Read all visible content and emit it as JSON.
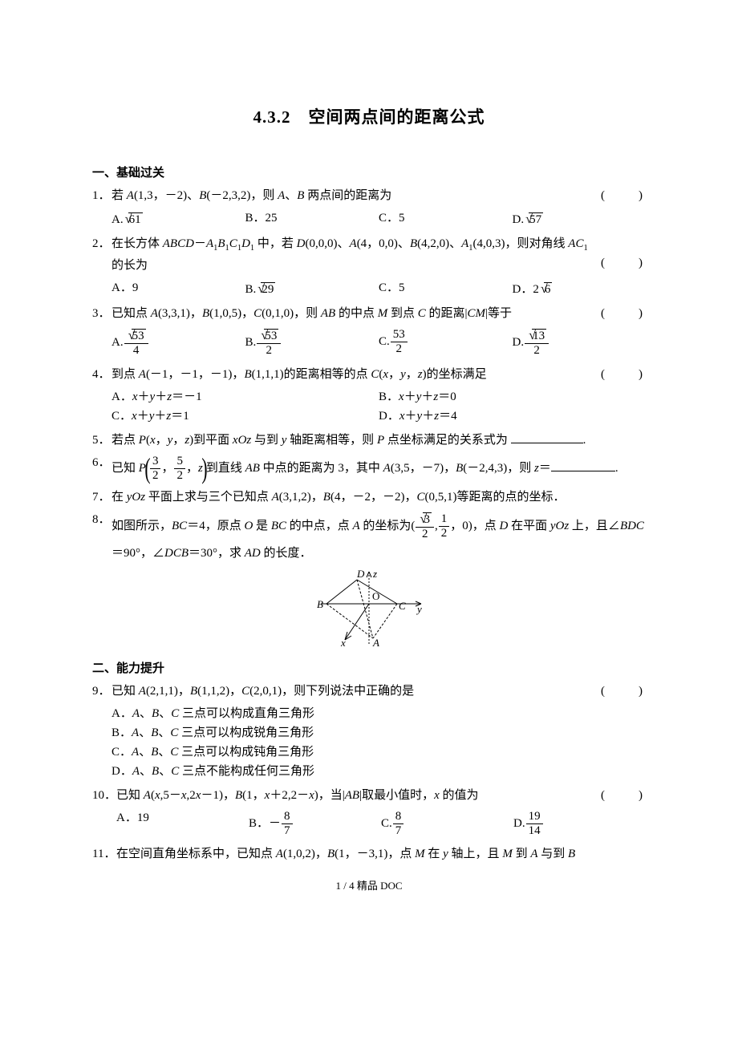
{
  "title": "4.3.2　空间两点间的距离公式",
  "sec1": "一、基础过关",
  "sec2": "二、能力提升",
  "paren_blank": "(　　)",
  "q1": {
    "n": "1．",
    "text": "若 <span class='it'>A</span>(1,3，－2)、<span class='it'>B</span>(－2,3,2)，则 <span class='it'>A</span>、<span class='it'>B</span> 两点间的距离为"
  },
  "q1o": {
    "a": "A.<span class='sqrt'><span class='rad'>61</span></span>",
    "b": "B．25",
    "c": "C．5",
    "d": "D.<span class='sqrt'><span class='rad'>57</span></span>"
  },
  "q2": {
    "n": "2．",
    "text": "在长方体 <span class='it'>ABCD</span>－<span class='it'>A</span><span class='sub'>1</span><span class='it'>B</span><span class='sub'>1</span><span class='it'>C</span><span class='sub'>1</span><span class='it'>D</span><span class='sub'>1</span> 中，若 <span class='it'>D</span>(0,0,0)、<span class='it'>A</span>(4，0,0)、<span class='it'>B</span>(4,2,0)、<span class='it'>A</span><span class='sub'>1</span>(4,0,3)，则对角线 <span class='it'>AC</span><span class='sub'>1</span> 的长为"
  },
  "q2o": {
    "a": "A．9",
    "b": "B.<span class='sqrt'><span class='rad'>29</span></span>",
    "c": "C．5",
    "d": "D．2<span class='sqrt'><span class='rad'>6</span></span>"
  },
  "q3": {
    "n": "3．",
    "text": "已知点 <span class='it'>A</span>(3,3,1)，<span class='it'>B</span>(1,0,5)，<span class='it'>C</span>(0,1,0)，则 <span class='it'>AB</span> 的中点 <span class='it'>M</span> 到点 <span class='it'>C</span> 的距离|<span class='it'>CM</span>|等于"
  },
  "q3o": {
    "a": "A.<span class='frac'><span class='num'><span class='sqrt'><span class='rad'>53</span></span></span><span class='den'>4</span></span>",
    "b": "B.<span class='frac'><span class='num'><span class='sqrt'><span class='rad'>53</span></span></span><span class='den'>2</span></span>",
    "c": "C.<span class='frac'><span class='num'>53</span><span class='den'>2</span></span>",
    "d": "D.<span class='frac'><span class='num'><span class='sqrt'><span class='rad'>13</span></span></span><span class='den'>2</span></span>"
  },
  "q4": {
    "n": "4．",
    "text": "到点 <span class='it'>A</span>(－1，－1，－1)，<span class='it'>B</span>(1,1,1)的距离相等的点 <span class='it'>C</span>(<span class='it'>x</span>，<span class='it'>y</span>，<span class='it'>z</span>)的坐标满足"
  },
  "q4o": {
    "a": "A．<span class='it'>x</span>＋<span class='it'>y</span>＋<span class='it'>z</span>＝－1",
    "b": "B．<span class='it'>x</span>＋<span class='it'>y</span>＋<span class='it'>z</span>＝0",
    "c": "C．<span class='it'>x</span>＋<span class='it'>y</span>＋<span class='it'>z</span>＝1",
    "d": "D．<span class='it'>x</span>＋<span class='it'>y</span>＋<span class='it'>z</span>＝4"
  },
  "q5": {
    "n": "5．",
    "text": "若点 <span class='it'>P</span>(<span class='it'>x</span>，<span class='it'>y</span>，<span class='it'>z</span>)到平面 <span class='it'>xOz</span> 与到 <span class='it'>y</span> 轴距离相等，则 <span class='it'>P</span> 点坐标满足的关系式为 <span class='blank' style='min-width:90px'></span>."
  },
  "q6": {
    "n": "6．",
    "text": "已知 <span class='it'>P</span><span class='big-paren-l'>(</span><span class='frac'><span class='num'>3</span><span class='den'>2</span></span>，<span class='frac'><span class='num'>5</span><span class='den'>2</span></span>，<span class='it'>z</span><span class='big-paren-r'>)</span>到直线 <span class='it'>AB</span> 中点的距离为 3，其中 <span class='it'>A</span>(3,5，－7)，<span class='it'>B</span>(－2,4,3)，则 <span class='it'>z</span>＝<span class='blank'></span>."
  },
  "q7": {
    "n": "7．",
    "text": "在 <span class='it'>yOz</span> 平面上求与三个已知点 <span class='it'>A</span>(3,1,2)，<span class='it'>B</span>(4，－2，－2)，<span class='it'>C</span>(0,5,1)等距离的点的坐标．"
  },
  "q8": {
    "n": "8．",
    "text": "如图所示，<span class='it'>BC</span>＝4，原点 <span class='it'>O</span> 是 <span class='it'>BC</span> 的中点，点 <span class='it'>A</span> 的坐标为(<span class='frac'><span class='num'><span class='sqrt'><span class='rad'>3</span></span></span><span class='den'>2</span></span>,<span class='frac'><span class='num'>1</span><span class='den'>2</span></span>，0)，点 <span class='it'>D</span> 在平面 <span class='it'>yOz</span> 上，且∠<span class='it'>BDC</span>＝90°，∠<span class='it'>DCB</span>＝30°，求 <span class='it'>AD</span> 的长度．"
  },
  "q9": {
    "n": "9．",
    "text": "已知 <span class='it'>A</span>(2,1,1)，<span class='it'>B</span>(1,1,2)，<span class='it'>C</span>(2,0,1)，则下列说法中正确的是"
  },
  "q9o": {
    "a": "A．<span class='it'>A</span>、<span class='it'>B</span>、<span class='it'>C</span> 三点可以构成直角三角形",
    "b": "B．<span class='it'>A</span>、<span class='it'>B</span>、<span class='it'>C</span> 三点可以构成锐角三角形",
    "c": "C．<span class='it'>A</span>、<span class='it'>B</span>、<span class='it'>C</span> 三点可以构成钝角三角形",
    "d": "D．<span class='it'>A</span>、<span class='it'>B</span>、<span class='it'>C</span> 三点不能构成任何三角形"
  },
  "q10": {
    "n": "10．",
    "text": "已知 <span class='it'>A</span>(<span class='it'>x</span>,5－<span class='it'>x</span>,2<span class='it'>x</span>－1)，<span class='it'>B</span>(1，<span class='it'>x</span>＋2,2－<span class='it'>x</span>)，当|<span class='it'>AB</span>|取最小值时，<span class='it'>x</span> 的值为"
  },
  "q10o": {
    "a": "A．19",
    "b": "B．－<span class='frac'><span class='num'>8</span><span class='den'>7</span></span>",
    "c": "C.<span class='frac'><span class='num'>8</span><span class='den'>7</span></span>",
    "d": "D.<span class='frac'><span class='num'>19</span><span class='den'>14</span></span>"
  },
  "q11": {
    "n": "11．",
    "text": "在空间直角坐标系中，已知点 <span class='it'>A</span>(1,0,2)，<span class='it'>B</span>(1，－3,1)，点 <span class='it'>M</span> 在 <span class='it'>y</span> 轴上，且 <span class='it'>M</span> 到 <span class='it'>A</span> 与到 <span class='it'>B</span>"
  },
  "footer": "1 / 4 精品 DOC",
  "fig": {
    "labels": {
      "D": "D",
      "z": "z",
      "O": "O",
      "B": "B",
      "C": "C",
      "y": "y",
      "x": "x",
      "A": "A"
    },
    "width": 150,
    "height": 100,
    "stroke": "#000000",
    "fill": "#ffffff"
  }
}
